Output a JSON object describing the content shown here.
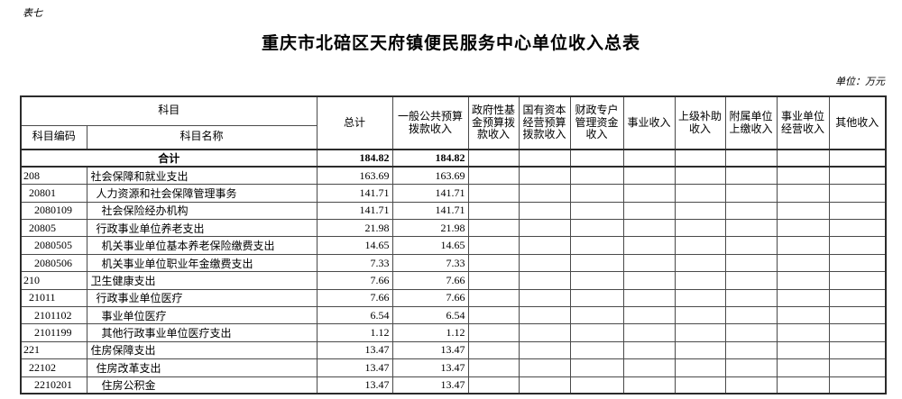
{
  "page": {
    "corner_label": "表七",
    "title": "重庆市北碚区天府镇便民服务中心单位收入总表",
    "unit_note": "单位：万元"
  },
  "table": {
    "header": {
      "subject_group": "科目",
      "subject_code": "科目编码",
      "subject_name": "科目名称",
      "value_columns": [
        "总计",
        "一般公共预算拨款收入",
        "政府性基金预算拨款收入",
        "国有资本经营预算拨款收入",
        "财政专户管理资金收入",
        "事业收入",
        "上级补助收入",
        "附属单位上缴收入",
        "事业单位经营收入",
        "其他收入"
      ]
    },
    "rows": [
      {
        "merged": true,
        "bold": true,
        "code": "",
        "name": "合计",
        "values": [
          "184.82",
          "184.82",
          "",
          "",
          "",
          "",
          "",
          "",
          "",
          ""
        ]
      },
      {
        "code": "208",
        "name": "社会保障和就业支出",
        "values": [
          "163.69",
          "163.69",
          "",
          "",
          "",
          "",
          "",
          "",
          "",
          ""
        ]
      },
      {
        "code": "  20801",
        "name": "  人力资源和社会保障管理事务",
        "values": [
          "141.71",
          "141.71",
          "",
          "",
          "",
          "",
          "",
          "",
          "",
          ""
        ]
      },
      {
        "code": "    2080109",
        "name": "    社会保险经办机构",
        "values": [
          "141.71",
          "141.71",
          "",
          "",
          "",
          "",
          "",
          "",
          "",
          ""
        ]
      },
      {
        "code": "  20805",
        "name": "  行政事业单位养老支出",
        "values": [
          "21.98",
          "21.98",
          "",
          "",
          "",
          "",
          "",
          "",
          "",
          ""
        ]
      },
      {
        "code": "    2080505",
        "name": "    机关事业单位基本养老保险缴费支出",
        "values": [
          "14.65",
          "14.65",
          "",
          "",
          "",
          "",
          "",
          "",
          "",
          ""
        ]
      },
      {
        "code": "    2080506",
        "name": "    机关事业单位职业年金缴费支出",
        "values": [
          "7.33",
          "7.33",
          "",
          "",
          "",
          "",
          "",
          "",
          "",
          ""
        ]
      },
      {
        "code": "210",
        "name": "卫生健康支出",
        "values": [
          "7.66",
          "7.66",
          "",
          "",
          "",
          "",
          "",
          "",
          "",
          ""
        ]
      },
      {
        "code": "  21011",
        "name": "  行政事业单位医疗",
        "values": [
          "7.66",
          "7.66",
          "",
          "",
          "",
          "",
          "",
          "",
          "",
          ""
        ]
      },
      {
        "code": "    2101102",
        "name": "    事业单位医疗",
        "values": [
          "6.54",
          "6.54",
          "",
          "",
          "",
          "",
          "",
          "",
          "",
          ""
        ]
      },
      {
        "code": "    2101199",
        "name": "    其他行政事业单位医疗支出",
        "values": [
          "1.12",
          "1.12",
          "",
          "",
          "",
          "",
          "",
          "",
          "",
          ""
        ]
      },
      {
        "code": "221",
        "name": "住房保障支出",
        "values": [
          "13.47",
          "13.47",
          "",
          "",
          "",
          "",
          "",
          "",
          "",
          ""
        ]
      },
      {
        "code": "  22102",
        "name": "  住房改革支出",
        "values": [
          "13.47",
          "13.47",
          "",
          "",
          "",
          "",
          "",
          "",
          "",
          ""
        ]
      },
      {
        "code": "    2210201",
        "name": "    住房公积金",
        "values": [
          "13.47",
          "13.47",
          "",
          "",
          "",
          "",
          "",
          "",
          "",
          ""
        ]
      }
    ]
  }
}
